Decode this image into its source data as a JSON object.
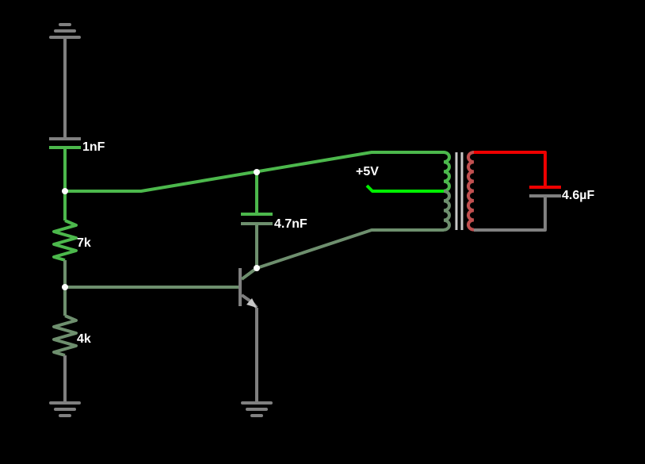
{
  "circuit": {
    "components": {
      "c_top": {
        "label": "1nF"
      },
      "r_top": {
        "label": "7k"
      },
      "r_bot": {
        "label": "4k"
      },
      "c_mid": {
        "label": "4.7nF"
      },
      "supply": {
        "label": "+5V"
      },
      "c_out": {
        "label": "4.6µF"
      }
    },
    "colors": {
      "background": "#000000",
      "wire_gray": "#808080",
      "wire_green": "#4cb84c",
      "wire_dim_green": "#6e8f6e",
      "wire_bright_green": "#00ee00",
      "wire_red": "#ee0000",
      "label": "#ffffff",
      "node": "#ffffff"
    }
  }
}
